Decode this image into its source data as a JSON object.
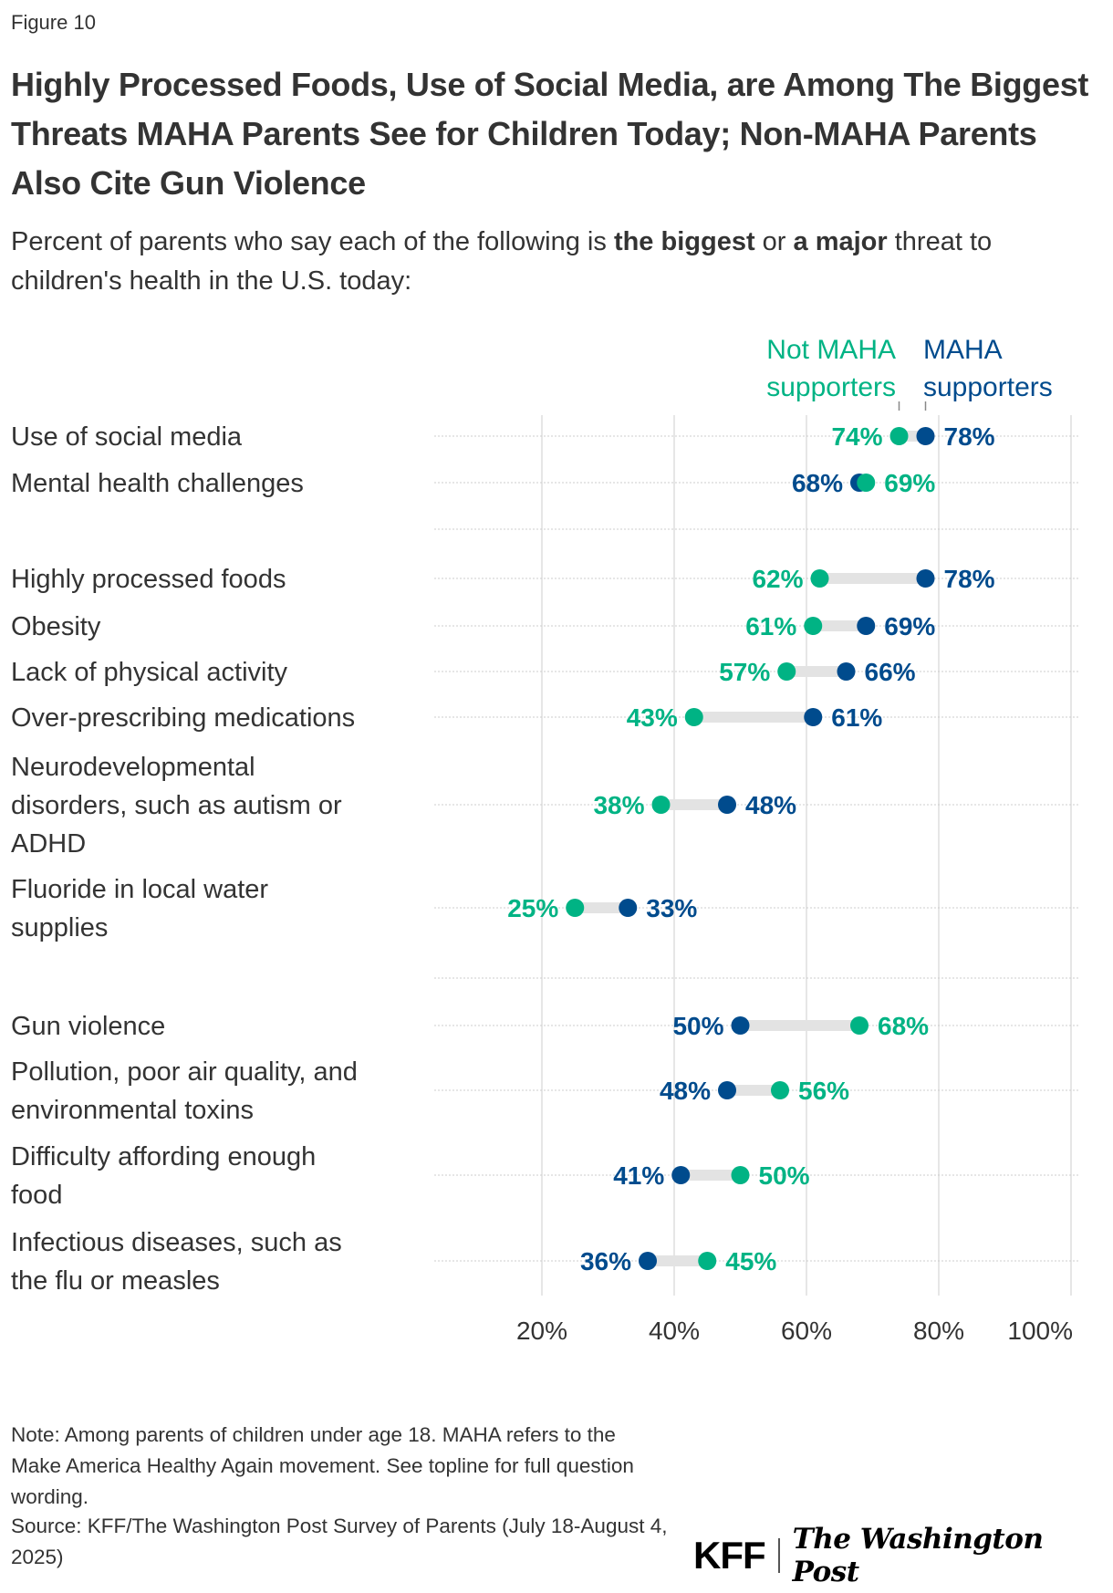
{
  "figure_label": "Figure 10",
  "title": "Highly Processed Foods, Use of Social Media, are Among The Biggest Threats MAHA Parents See for Children Today; Non-MAHA Parents Also Cite Gun Violence",
  "subtitle": {
    "part1": "Percent of parents who say each of the following is ",
    "bold1": "the biggest",
    "part2": " or ",
    "bold2": "a major",
    "part3": " threat to children's health in the U.S. today:"
  },
  "colors": {
    "not_maha": "#00b384",
    "maha": "#004b8d",
    "connector": "#e3e3e3",
    "grid": "#cccccc",
    "text": "#333333"
  },
  "chart_data": {
    "type": "dot-plot",
    "title": "Highly Processed Foods, Use of Social Media, are Among The Biggest Threats MAHA Parents See for Children Today; Non-MAHA Parents Also Cite Gun Violence",
    "xlabel": "",
    "ylabel": "",
    "xlim": [
      20,
      100
    ],
    "x_ticks": [
      "20%",
      "40%",
      "60%",
      "80%",
      "100%"
    ],
    "x_tick_values": [
      20,
      40,
      60,
      80,
      100
    ],
    "grid": true,
    "legend": [
      {
        "name": "Not MAHA supporters",
        "lines": [
          "Not MAHA",
          "supporters"
        ],
        "color": "#00b384"
      },
      {
        "name": "MAHA supporters",
        "lines": [
          "MAHA",
          "supporters"
        ],
        "color": "#004b8d"
      }
    ],
    "legend_placement": "top",
    "groups": [
      {
        "rows": [
          {
            "label": [
              "Use of social media"
            ],
            "not_maha": 74,
            "maha": 78
          },
          {
            "label": [
              "Mental health challenges"
            ],
            "not_maha": 69,
            "maha": 68
          }
        ]
      },
      {
        "rows": [
          {
            "label": [
              "Highly processed foods"
            ],
            "not_maha": 62,
            "maha": 78
          },
          {
            "label": [
              "Obesity"
            ],
            "not_maha": 61,
            "maha": 69
          },
          {
            "label": [
              "Lack of physical activity"
            ],
            "not_maha": 57,
            "maha": 66
          },
          {
            "label": [
              "Over-prescribing medications"
            ],
            "not_maha": 43,
            "maha": 61
          },
          {
            "label": [
              "Neurodevelopmental",
              "disorders, such as autism or",
              "ADHD"
            ],
            "not_maha": 38,
            "maha": 48
          },
          {
            "label": [
              "Fluoride in local water",
              "supplies"
            ],
            "not_maha": 25,
            "maha": 33
          }
        ]
      },
      {
        "rows": [
          {
            "label": [
              "Gun violence"
            ],
            "not_maha": 68,
            "maha": 50
          },
          {
            "label": [
              "Pollution, poor air quality, and",
              "environmental toxins"
            ],
            "not_maha": 56,
            "maha": 48
          },
          {
            "label": [
              "Difficulty affording enough",
              "food"
            ],
            "not_maha": 50,
            "maha": 41
          },
          {
            "label": [
              "Infectious diseases, such as",
              "the flu or measles"
            ],
            "not_maha": 45,
            "maha": 36
          }
        ]
      }
    ]
  },
  "note": "Note: Among parents of children under age 18. MAHA refers to the Make America Healthy Again movement. See topline for full question wording.",
  "source": "Source: KFF/The Washington Post Survey of Parents (July 18-August 4, 2025)",
  "logos": {
    "kff": "KFF",
    "wapo": "The Washington Post"
  }
}
